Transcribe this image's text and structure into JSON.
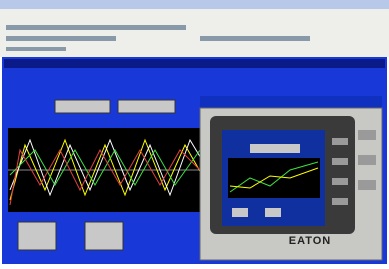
{
  "device": {
    "brand": "EATON"
  }
}
